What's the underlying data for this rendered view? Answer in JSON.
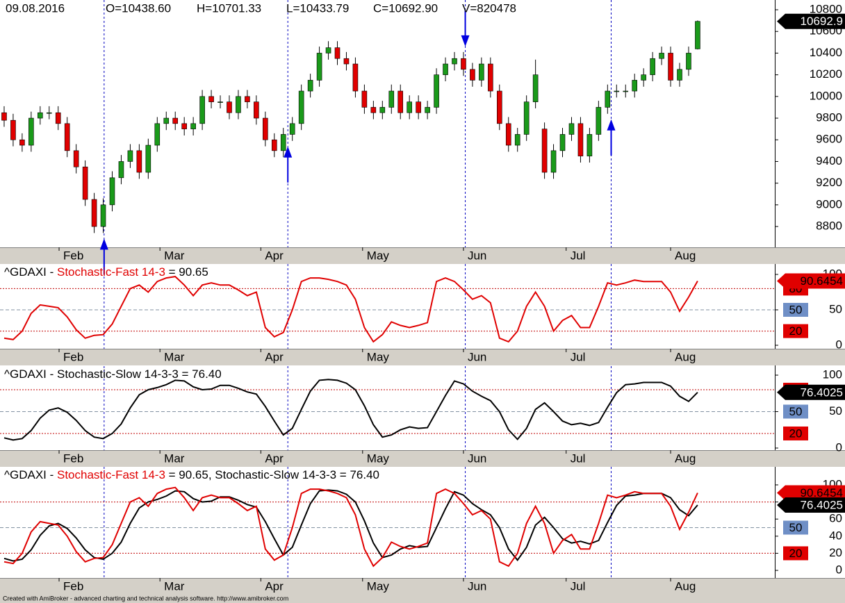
{
  "header": {
    "date": "09.08.2016",
    "open": "O=10438.60",
    "high": "H=10701.33",
    "low": "L=10433.79",
    "close": "C=10692.90",
    "volume": "V=820478"
  },
  "footer": "Created with AmiBroker - advanced charting and technical analysis software. http://www.amibroker.com",
  "time_axis": {
    "xlim": [
      -0.46,
      85.57
    ],
    "xticks": [
      {
        "value": 6.1,
        "label": "Feb"
      },
      {
        "value": 17.3,
        "label": "Mar"
      },
      {
        "value": 28.5,
        "label": "Apr"
      },
      {
        "value": 39.8,
        "label": "May"
      },
      {
        "value": 51.0,
        "label": "Jun"
      },
      {
        "value": 62.4,
        "label": "Jul"
      },
      {
        "value": 74.0,
        "label": "Aug"
      }
    ],
    "signal_lines": [
      11.1,
      31.5,
      51.2,
      67.4
    ]
  },
  "chart_data": [
    {
      "type": "candlestick",
      "up_color": "#1a9a1a",
      "down_color": "#e00000",
      "ylim": [
        8608,
        10890
      ],
      "yticks": [
        8800,
        9000,
        9200,
        9400,
        9600,
        9800,
        10000,
        10200,
        10400,
        10600,
        10800
      ],
      "last_label": "10692.9",
      "arrows": [
        {
          "x": 11.1,
          "direction": "up"
        },
        {
          "x": 31.5,
          "direction": "up"
        },
        {
          "x": 51.2,
          "direction": "down"
        },
        {
          "x": 67.4,
          "direction": "up"
        }
      ],
      "arrow_color": "#0000e0",
      "open": [
        9850,
        9780,
        9600,
        9550,
        9800,
        9850,
        9850,
        9750,
        9500,
        9350,
        9050,
        8800,
        9000,
        9250,
        9400,
        9500,
        9300,
        9550,
        9750,
        9800,
        9750,
        9700,
        9750,
        10000,
        9950,
        9950,
        9850,
        10000,
        9950,
        9800,
        9600,
        9500,
        9650,
        9750,
        10050,
        10150,
        10400,
        10450,
        10350,
        10300,
        10050,
        9900,
        9850,
        9900,
        10050,
        9850,
        9950,
        9850,
        9900,
        10200,
        10300,
        10350,
        10250,
        10150,
        10300,
        10050,
        9750,
        9550,
        9650,
        9950,
        9700,
        9300,
        9500,
        9650,
        9750,
        9450,
        9650,
        9900,
        10050,
        10050,
        10050,
        10150,
        10200,
        10350,
        10400,
        10150,
        10250,
        10438.6
      ],
      "high": [
        9910,
        9840,
        9660,
        9860,
        9910,
        9910,
        9910,
        9810,
        9560,
        9410,
        9110,
        9060,
        9310,
        9460,
        9560,
        9560,
        9610,
        9810,
        9860,
        9860,
        9810,
        9810,
        10060,
        10060,
        10010,
        10010,
        10060,
        10060,
        10010,
        9860,
        9660,
        9710,
        9810,
        10110,
        10210,
        10460,
        10510,
        10510,
        10410,
        10360,
        10110,
        9960,
        9960,
        10110,
        10110,
        10010,
        10010,
        9960,
        10260,
        10360,
        10410,
        10410,
        10310,
        10360,
        10360,
        10110,
        9810,
        9710,
        10010,
        10340,
        9760,
        9560,
        9710,
        9810,
        9810,
        9710,
        9960,
        10110,
        10110,
        10110,
        10210,
        10260,
        10410,
        10460,
        10460,
        10310,
        10460,
        10701.33
      ],
      "low": [
        9720,
        9540,
        9490,
        9490,
        9740,
        9790,
        9690,
        9440,
        9290,
        8990,
        8740,
        8740,
        8940,
        9190,
        9340,
        9240,
        9240,
        9490,
        9690,
        9690,
        9640,
        9640,
        9690,
        9890,
        9890,
        9790,
        9790,
        9890,
        9740,
        9540,
        9440,
        9440,
        9590,
        9690,
        9990,
        10090,
        10340,
        10290,
        10240,
        9990,
        9840,
        9790,
        9790,
        9840,
        9790,
        9790,
        9790,
        9790,
        9840,
        10140,
        10240,
        10190,
        10090,
        10090,
        9990,
        9690,
        9490,
        9490,
        9590,
        9890,
        9240,
        9240,
        9440,
        9590,
        9390,
        9390,
        9590,
        9840,
        9990,
        9990,
        9990,
        10090,
        10140,
        10290,
        10090,
        10090,
        10190,
        10433.79
      ],
      "close": [
        9780,
        9600,
        9550,
        9800,
        9850,
        9850,
        9750,
        9500,
        9350,
        9050,
        8800,
        9000,
        9250,
        9400,
        9500,
        9300,
        9550,
        9750,
        9800,
        9750,
        9700,
        9750,
        10000,
        9950,
        9950,
        9850,
        10000,
        9950,
        9800,
        9600,
        9500,
        9650,
        9750,
        10050,
        10150,
        10400,
        10450,
        10350,
        10300,
        10050,
        9900,
        9850,
        9900,
        10050,
        9850,
        9950,
        9850,
        9900,
        10200,
        10300,
        10350,
        10250,
        10150,
        10300,
        10050,
        9750,
        9550,
        9650,
        9950,
        10200,
        9300,
        9500,
        9650,
        9750,
        9450,
        9650,
        9900,
        10050,
        10050,
        10050,
        10150,
        10200,
        10350,
        10400,
        10150,
        10250,
        10400,
        10692.9
      ]
    },
    {
      "type": "stochastic",
      "title": [
        {
          "text": "^GDAXI - ",
          "color": "#000000"
        },
        {
          "text": "Stochastic-Fast 14-3",
          "color": "#e00000"
        },
        {
          "text": " = 90.65",
          "color": "#000000"
        }
      ],
      "ylim": [
        -4.9,
        114.7
      ],
      "yticks": [
        0,
        50,
        100
      ],
      "levels": [
        {
          "value": 80,
          "color": "#e00000"
        },
        {
          "value": 50,
          "color": "#6f8fc6"
        },
        {
          "value": 20,
          "color": "#e00000"
        }
      ],
      "series": [
        {
          "color": "#e00000",
          "values": [
            10,
            8,
            20,
            45,
            57,
            55,
            53,
            40,
            22,
            10,
            14,
            15,
            30,
            55,
            80,
            85,
            75,
            90,
            95,
            97,
            85,
            70,
            85,
            88,
            85,
            85,
            78,
            70,
            75,
            25,
            12,
            18,
            50,
            90,
            95,
            95,
            93,
            90,
            85,
            65,
            25,
            5,
            15,
            33,
            28,
            25,
            28,
            32,
            90,
            95,
            90,
            78,
            65,
            70,
            60,
            10,
            5,
            20,
            55,
            75,
            55,
            20,
            35,
            42,
            25,
            25,
            55,
            88,
            85,
            88,
            92,
            90,
            90,
            90,
            75,
            48,
            68,
            90.65
          ],
          "last_label": "90.6454"
        }
      ]
    },
    {
      "type": "stochastic",
      "title": [
        {
          "text": "^GDAXI - Stochastic-Slow 14-3-3 = 76.40",
          "color": "#000000"
        }
      ],
      "ylim": [
        -2.9,
        112.4
      ],
      "yticks": [
        0,
        50,
        100
      ],
      "levels": [
        {
          "value": 80,
          "color": "#e00000"
        },
        {
          "value": 50,
          "color": "#6f8fc6"
        },
        {
          "value": 20,
          "color": "#e00000"
        }
      ],
      "series": [
        {
          "color": "#000000",
          "values": [
            14,
            11,
            13,
            24,
            41,
            52,
            55,
            49,
            38,
            24,
            15,
            13,
            20,
            33,
            55,
            73,
            80,
            83,
            87,
            93,
            92,
            84,
            80,
            81,
            86,
            86,
            82,
            77,
            74,
            57,
            37,
            18,
            27,
            53,
            78,
            93,
            94,
            93,
            89,
            80,
            58,
            32,
            15,
            18,
            25,
            29,
            27,
            28,
            50,
            72,
            92,
            88,
            78,
            71,
            65,
            50,
            25,
            12,
            27,
            53,
            62,
            50,
            37,
            32,
            34,
            31,
            35,
            56,
            76,
            87,
            88,
            90,
            90,
            90,
            85,
            71,
            64,
            76.4
          ],
          "last_label": "76.4025"
        }
      ]
    },
    {
      "type": "stochastic-combined",
      "title": [
        {
          "text": "^GDAXI - ",
          "color": "#000000"
        },
        {
          "text": "Stochastic-Fast 14-3",
          "color": "#e00000"
        },
        {
          "text": " = 90.65, Stochastic-Slow 14-3-3 = 76.40",
          "color": "#000000"
        }
      ],
      "ylim": [
        -8.9,
        121.1
      ],
      "yticks": [
        0,
        20,
        40,
        60,
        80,
        100
      ],
      "levels": [
        {
          "value": 80,
          "color": "#e00000"
        },
        {
          "value": 50,
          "color": "#6f8fc6"
        },
        {
          "value": 20,
          "color": "#e00000"
        }
      ]
    }
  ]
}
